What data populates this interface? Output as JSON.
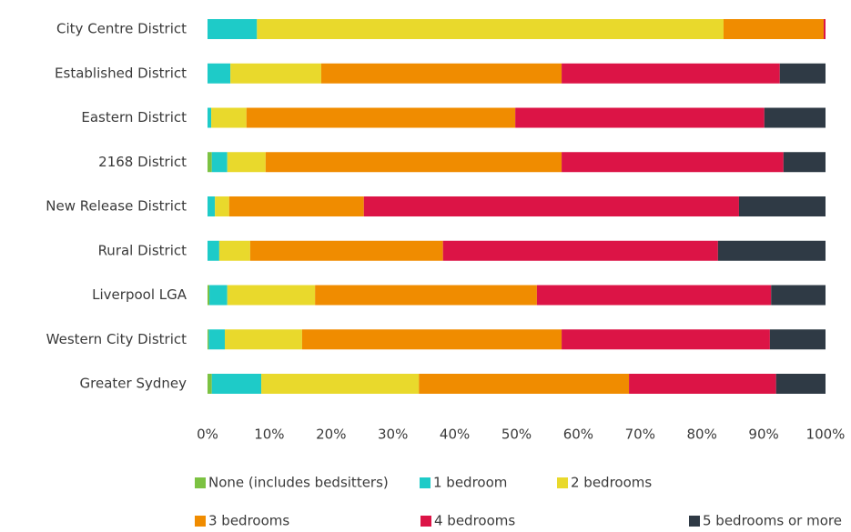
{
  "chart_data": {
    "type": "stacked_barh",
    "categories": [
      "City Centre District",
      "Established District",
      "Eastern District",
      "2168 District",
      "New Release District",
      "Rural District",
      "Liverpool LGA",
      "Western City District",
      "Greater Sydney"
    ],
    "series": [
      {
        "name": "None (includes bedsitters)",
        "color": "#7cc242",
        "values": [
          0,
          0,
          0,
          0.7,
          0,
          0,
          0.3,
          0.2,
          0.7
        ]
      },
      {
        "name": "1 bedroom",
        "color": "#1ecbc8",
        "values": [
          8,
          3.7,
          0.6,
          2.5,
          1.2,
          1.9,
          2.9,
          2.6,
          8
        ]
      },
      {
        "name": "2 bedrooms",
        "color": "#e9d92c",
        "values": [
          75.5,
          14.7,
          5.7,
          6.2,
          2.3,
          5,
          14.2,
          12.5,
          25.5
        ]
      },
      {
        "name": "3 bedrooms",
        "color": "#f08c00",
        "values": [
          16.2,
          38.9,
          43.5,
          47.9,
          21.8,
          31.2,
          35.9,
          42,
          34
        ]
      },
      {
        "name": "4 bedrooms",
        "color": "#dc1446",
        "values": [
          0.3,
          35.3,
          40.3,
          35.9,
          60.7,
          44.5,
          37.9,
          33.7,
          23.8
        ]
      },
      {
        "name": "5 bedrooms or more",
        "color": "#2f3a45",
        "values": [
          0,
          7.4,
          9.9,
          6.8,
          14,
          17.4,
          8.8,
          9,
          8
        ]
      }
    ],
    "xlim": [
      0,
      100
    ],
    "xticks": [
      {
        "value": 0,
        "label": "0%"
      },
      {
        "value": 10,
        "label": "10%"
      },
      {
        "value": 20,
        "label": "20%"
      },
      {
        "value": 30,
        "label": "30%"
      },
      {
        "value": 40,
        "label": "40%"
      },
      {
        "value": 50,
        "label": "50%"
      },
      {
        "value": 60,
        "label": "60%"
      },
      {
        "value": 70,
        "label": "70%"
      },
      {
        "value": 80,
        "label": "80%"
      },
      {
        "value": 90,
        "label": "90%"
      },
      {
        "value": 100,
        "label": "100%"
      }
    ],
    "grid": false,
    "legend": "bottom"
  }
}
